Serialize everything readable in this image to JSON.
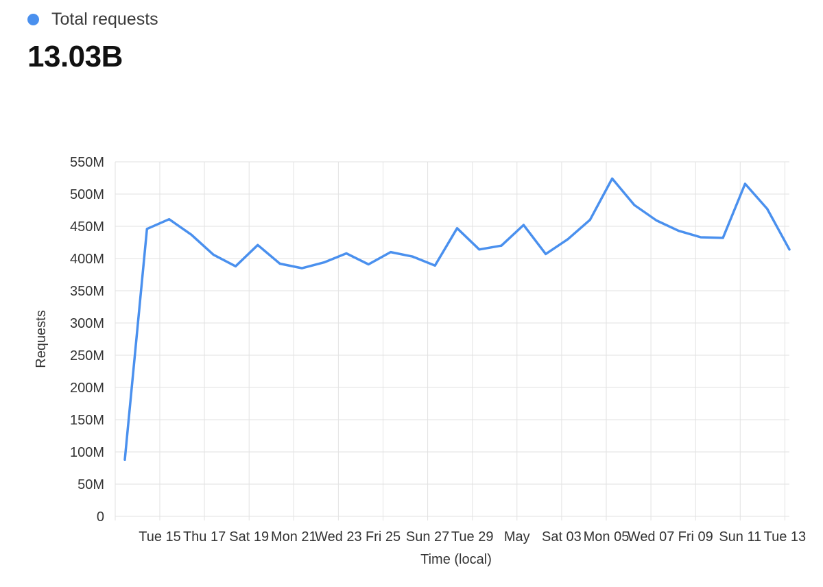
{
  "legend": {
    "label": "Total requests",
    "color": "#4a90ee"
  },
  "total": {
    "value": "13.03B"
  },
  "chart_data": {
    "type": "line",
    "title": "",
    "xlabel": "Time (local)",
    "ylabel": "Requests",
    "ylim": [
      0,
      550000000
    ],
    "y_ticks": [
      0,
      50000000,
      100000000,
      150000000,
      200000000,
      250000000,
      300000000,
      350000000,
      400000000,
      450000000,
      500000000,
      550000000
    ],
    "y_tick_labels": [
      "0",
      "50M",
      "100M",
      "150M",
      "200M",
      "250M",
      "300M",
      "350M",
      "400M",
      "450M",
      "500M",
      "550M"
    ],
    "x_tick_labels": [
      "Tue 15",
      "Thu 17",
      "Sat 19",
      "Mon 21",
      "Wed 23",
      "Fri 25",
      "Sun 27",
      "Tue 29",
      "May",
      "Sat 03",
      "Mon 05",
      "Wed 07",
      "Fri 09",
      "Sun 11",
      "Tue 13"
    ],
    "grid": true,
    "legend_position": "top-left",
    "series": [
      {
        "name": "Total requests",
        "color": "#4a90ee",
        "values": [
          88000000,
          446000000,
          461000000,
          437000000,
          406000000,
          388000000,
          421000000,
          392000000,
          385000000,
          394000000,
          408000000,
          391000000,
          410000000,
          403000000,
          389000000,
          447000000,
          414000000,
          420000000,
          452000000,
          407000000,
          430000000,
          460000000,
          524000000,
          483000000,
          459000000,
          443000000,
          433000000,
          432000000,
          516000000,
          477000000,
          414000000
        ]
      }
    ]
  }
}
